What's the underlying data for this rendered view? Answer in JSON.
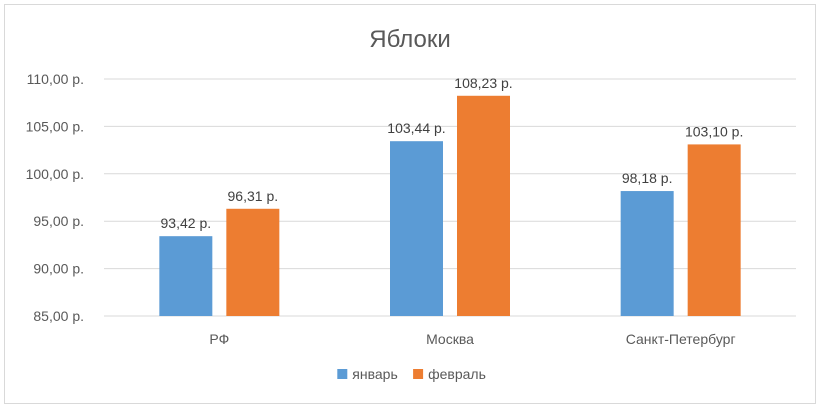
{
  "chart_data": {
    "type": "bar",
    "title": "Яблоки",
    "categories": [
      "РФ",
      "Москва",
      "Санкт-Петербург"
    ],
    "series": [
      {
        "name": "январь",
        "color": "#5b9bd5",
        "values": [
          93.42,
          103.44,
          98.18
        ],
        "labels": [
          "93,42 р.",
          "103,44 р.",
          "98,18 р."
        ]
      },
      {
        "name": "февраль",
        "color": "#ed7d31",
        "values": [
          96.31,
          108.23,
          103.1
        ],
        "labels": [
          "96,31 р.",
          "108,23 р.",
          "103,10 р."
        ]
      }
    ],
    "ylim": [
      85,
      110
    ],
    "y_ticks": [
      85,
      90,
      95,
      100,
      105,
      110
    ],
    "y_tick_labels": [
      "85,00 р.",
      "90,00 р.",
      "95,00 р.",
      "100,00 р.",
      "105,00 р.",
      "110,00 р."
    ],
    "grid": true,
    "legend_position": "bottom",
    "gridline_color": "#d9d9d9"
  }
}
